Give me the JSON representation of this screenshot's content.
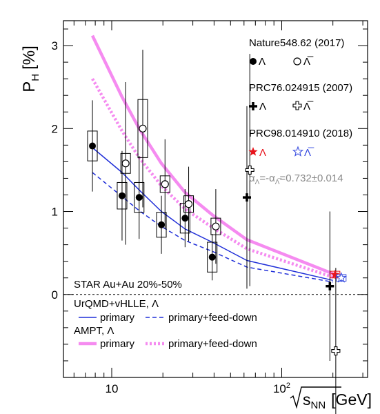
{
  "chart_data": {
    "type": "scatter",
    "ylabel_main": "P",
    "ylabel_sub": "H",
    "ylabel_unit": "[%]",
    "xlabel_main": "s",
    "xlabel_sub": "NN",
    "xlabel_unit": "[GeV]",
    "x_scale": "log",
    "xlim": [
      5.2,
      320
    ],
    "ylim": [
      -1.0,
      3.3
    ],
    "x_ticks": [
      {
        "v": 10,
        "label": "10"
      },
      {
        "v": 100,
        "label": "10",
        "sup": "2"
      }
    ],
    "y_ticks": [
      0,
      1,
      2,
      3
    ],
    "reference_line": 0,
    "legend_groups": [
      {
        "title": "Nature548.62 (2017)",
        "filled": "Λ",
        "open": "Λ̅"
      },
      {
        "title": "PRC76.024915 (2007)",
        "filled": "Λ",
        "open": "Λ̅"
      },
      {
        "title": "PRC98.014910 (2018)",
        "filled": "Λ",
        "open": "Λ̅"
      }
    ],
    "alpha_text": "α",
    "alpha_sub1": "Λ",
    "alpha_mid": "=-α",
    "alpha_sub2": "Λ̅",
    "alpha_value": "=0.732±0.014",
    "system_label": "STAR Au+Au 20%-50%",
    "urqmd_label": "UrQMD+vHLLE, Λ",
    "ampt_label": "AMPT, Λ",
    "primary_label": "primary",
    "feeddown_label": "primary+feed-down",
    "colors": {
      "star_lambda": "#000000",
      "rhic_lambda": "#e8141c",
      "urqmd": "#1f2ed8",
      "ampt": "#f58bf0",
      "rhic_bar": "#3b4fe0",
      "grid": "#000000"
    },
    "series": [
      {
        "name": "Nature548.62 (2017) Λ",
        "marker": "circle-filled",
        "points": [
          {
            "x": 7.7,
            "y": 1.79,
            "err": 0.55,
            "sys": 0.18
          },
          {
            "x": 11.5,
            "y": 1.19,
            "err": 0.54,
            "sys": 0.16
          },
          {
            "x": 14.5,
            "y": 1.17,
            "err": 0.5,
            "sys": 0.18
          },
          {
            "x": 19.6,
            "y": 0.84,
            "err": 0.35,
            "sys": 0.15
          },
          {
            "x": 27,
            "y": 0.92,
            "err": 0.35,
            "sys": 0.18
          },
          {
            "x": 39,
            "y": 0.45,
            "err": 0.28,
            "sys": 0.18
          }
        ]
      },
      {
        "name": "Nature548.62 (2017) Λ̅",
        "marker": "circle-open",
        "points": [
          {
            "x": 11.5,
            "y": 1.58,
            "err": 0.98,
            "sys": 0.12
          },
          {
            "x": 14.5,
            "y": 2.0,
            "err": 0.95,
            "sys": 0.35
          },
          {
            "x": 19.6,
            "y": 1.33,
            "err": 0.54,
            "sys": 0.1
          },
          {
            "x": 27,
            "y": 1.09,
            "err": 0.45,
            "sys": 0.1
          },
          {
            "x": 39,
            "y": 0.82,
            "err": 0.45,
            "sys": 0.1
          }
        ]
      },
      {
        "name": "PRC76.024915 (2007) Λ",
        "marker": "cross-filled",
        "points": [
          {
            "x": 62.4,
            "y": 1.17,
            "err": 1.1,
            "sys": 0.0
          },
          {
            "x": 200,
            "y": 0.1,
            "err": 0.9,
            "sys": 0.0
          }
        ]
      },
      {
        "name": "PRC76.024915 (2007) Λ̅",
        "marker": "cross-open",
        "points": [
          {
            "x": 62.4,
            "y": 1.5,
            "err": 1.4,
            "sys": 0.0
          },
          {
            "x": 200,
            "y": -0.68,
            "err": 1.0,
            "sys": 0.0
          }
        ]
      },
      {
        "name": "PRC98.014910 (2018) Λ",
        "marker": "star-filled",
        "points": [
          {
            "x": 200,
            "y": 0.24,
            "err": 0.05,
            "sys": 0.04
          }
        ]
      },
      {
        "name": "PRC98.014910 (2018) Λ̅",
        "marker": "star-open",
        "points": [
          {
            "x": 200,
            "y": 0.2,
            "err": 0.05,
            "sys": 0.04
          }
        ]
      }
    ],
    "model_curves": [
      {
        "name": "UrQMD+vHLLE primary",
        "style": "solid-thin",
        "color": "#1f2ed8",
        "x": [
          7.7,
          11.5,
          14.5,
          19.6,
          27,
          39,
          62.4,
          200
        ],
        "y": [
          1.77,
          1.47,
          1.26,
          1.0,
          0.79,
          0.63,
          0.41,
          0.17
        ]
      },
      {
        "name": "UrQMD+vHLLE primary+feed-down",
        "style": "dashed-thin",
        "color": "#1f2ed8",
        "x": [
          7.7,
          11.5,
          14.5,
          19.6,
          27,
          39,
          62.4,
          200
        ],
        "y": [
          1.47,
          1.18,
          1.01,
          0.82,
          0.65,
          0.52,
          0.33,
          0.15
        ]
      },
      {
        "name": "AMPT primary",
        "style": "solid-thick",
        "color": "#f58bf0",
        "x": [
          7.7,
          11.5,
          14.5,
          19.6,
          27,
          39,
          62.4,
          200
        ],
        "y": [
          3.12,
          2.38,
          2.0,
          1.58,
          1.23,
          0.96,
          0.66,
          0.25
        ]
      },
      {
        "name": "AMPT primary+feed-down",
        "style": "dotted-thick",
        "color": "#f58bf0",
        "x": [
          7.7,
          11.5,
          14.5,
          19.6,
          27,
          39,
          62.4,
          200
        ],
        "y": [
          2.6,
          1.97,
          1.65,
          1.31,
          1.03,
          0.81,
          0.55,
          0.21
        ]
      }
    ]
  }
}
